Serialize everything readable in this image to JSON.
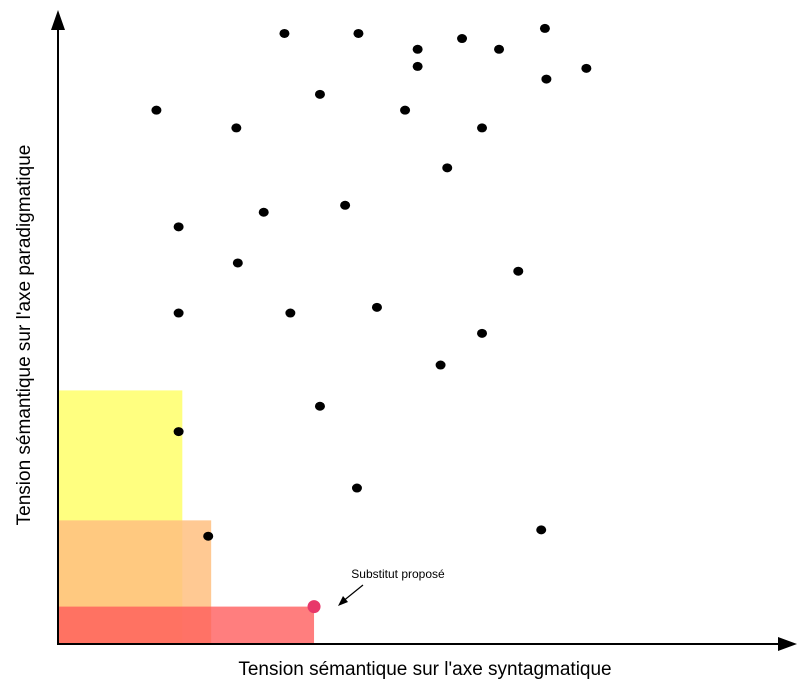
{
  "chart_data": {
    "type": "scatter",
    "title": "",
    "xlabel": "Tension sémantique sur l'axe syntagmatique",
    "ylabel": "Tension sémantique sur l'axe paradigmatique",
    "grid": false,
    "xlim": [
      0,
      100
    ],
    "ylim": [
      0,
      100
    ],
    "points": [
      {
        "x": 13.3,
        "y": 84.2
      },
      {
        "x": 24.1,
        "y": 81.4
      },
      {
        "x": 30.6,
        "y": 96.3
      },
      {
        "x": 40.6,
        "y": 96.3
      },
      {
        "x": 48.6,
        "y": 93.8
      },
      {
        "x": 48.6,
        "y": 91.1
      },
      {
        "x": 54.6,
        "y": 95.5
      },
      {
        "x": 59.6,
        "y": 93.8
      },
      {
        "x": 65.8,
        "y": 97.1
      },
      {
        "x": 71.4,
        "y": 90.8
      },
      {
        "x": 66.0,
        "y": 89.1
      },
      {
        "x": 35.4,
        "y": 86.7
      },
      {
        "x": 46.9,
        "y": 84.2
      },
      {
        "x": 57.3,
        "y": 81.4
      },
      {
        "x": 52.6,
        "y": 75.1
      },
      {
        "x": 16.3,
        "y": 65.8
      },
      {
        "x": 27.8,
        "y": 68.1
      },
      {
        "x": 38.8,
        "y": 69.2
      },
      {
        "x": 24.3,
        "y": 60.1
      },
      {
        "x": 62.2,
        "y": 58.8
      },
      {
        "x": 16.3,
        "y": 52.2
      },
      {
        "x": 31.4,
        "y": 52.2
      },
      {
        "x": 43.1,
        "y": 53.1
      },
      {
        "x": 57.3,
        "y": 49.0
      },
      {
        "x": 51.7,
        "y": 44.0
      },
      {
        "x": 35.4,
        "y": 37.5
      },
      {
        "x": 16.3,
        "y": 33.5
      },
      {
        "x": 40.4,
        "y": 24.6
      },
      {
        "x": 20.3,
        "y": 17.0
      },
      {
        "x": 65.3,
        "y": 18.0
      }
    ],
    "proposed_point": {
      "x": 34.6,
      "y": 5.9
    },
    "regions": [
      {
        "x": 16.8,
        "y": 40.0,
        "color": "#ffff80"
      },
      {
        "x": 20.7,
        "y": 19.5,
        "color": "#ffbf80",
        "opacity": 0.85
      },
      {
        "x": 34.6,
        "y": 5.9,
        "color": "#ff5a5a",
        "opacity": 0.78
      }
    ],
    "annotation": "Substitut proposé",
    "colors": {
      "point": "#000000",
      "proposed": "#e8386a",
      "axis": "#000000"
    }
  }
}
